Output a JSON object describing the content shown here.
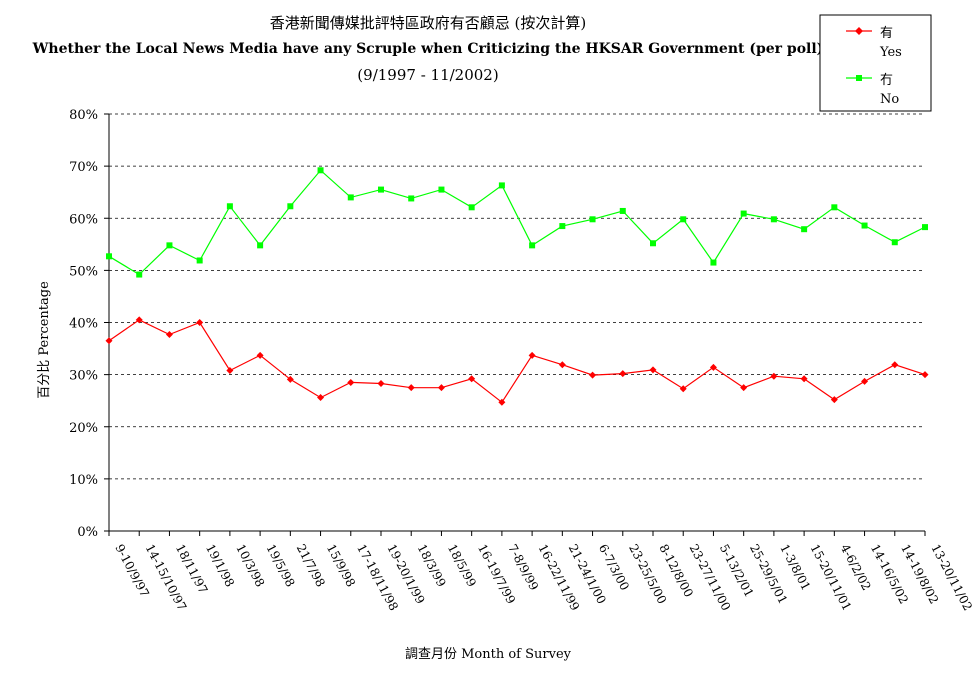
{
  "chart_data": {
    "type": "line",
    "title": "香港新聞傳媒批評特區政府有否顧忌 (按次計算)",
    "subtitle": "Whether the Local News Media have any Scruple when Criticizing the HKSAR Government (per poll)",
    "period": "(9/1997 - 11/2002)",
    "xlabel": "調查月份 Month of Survey",
    "ylabel": "百分比 Percentage",
    "ylim": [
      0,
      80
    ],
    "yticks": [
      "0%",
      "10%",
      "20%",
      "30%",
      "40%",
      "50%",
      "60%",
      "70%",
      "80%"
    ],
    "grid": "horizontal-dashed",
    "legend_position": "top-right",
    "categories": [
      "9-10/9/97",
      "14-15/10/97",
      "18/11/97",
      "19/1/98",
      "10/3/98",
      "19/5/98",
      "21/7/98",
      "15/9/98",
      "17-18/11/98",
      "19-20/1/99",
      "18/3/99",
      "18/5/99",
      "16-19/7/99",
      "7-8/9/99",
      "16-22/11/99",
      "21-24/1/00",
      "6-7/3/00",
      "23-25/5/00",
      "8-12/8/00",
      "23-27/11/00",
      "5-13/2/01",
      "25-29/5/01",
      "1-3/8/01",
      "15-20/11/01",
      "4-6/2/02",
      "14-16/5/02",
      "14-19/8/02",
      "13-20/11/02"
    ],
    "series": [
      {
        "name_zh": "有",
        "name_en": "Yes",
        "color": "#ff0000",
        "marker": "diamond",
        "values": [
          36.5,
          40.5,
          37.7,
          40.0,
          30.8,
          33.7,
          29.1,
          25.6,
          28.5,
          28.3,
          27.5,
          27.5,
          29.2,
          24.7,
          33.7,
          31.9,
          29.9,
          30.2,
          30.9,
          27.3,
          31.4,
          27.5,
          29.7,
          29.2,
          25.2,
          28.7,
          31.9,
          30.0
        ]
      },
      {
        "name_zh": "冇",
        "name_en": "No",
        "color": "#00ff00",
        "marker": "square",
        "values": [
          52.7,
          49.2,
          54.8,
          51.9,
          62.3,
          54.8,
          62.3,
          69.2,
          64.0,
          65.5,
          63.8,
          65.5,
          62.1,
          66.3,
          54.8,
          58.5,
          59.8,
          61.4,
          55.2,
          59.8,
          51.5,
          60.9,
          59.8,
          57.9,
          62.1,
          58.6,
          55.4,
          58.3
        ]
      }
    ]
  }
}
